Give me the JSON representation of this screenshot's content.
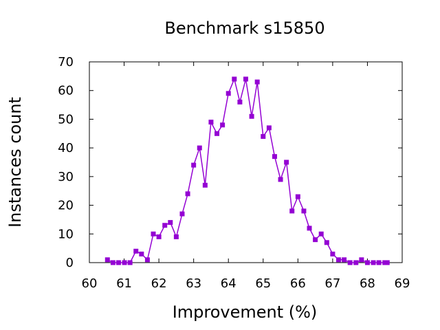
{
  "chart_data": {
    "type": "line",
    "title": "Benchmark s15850",
    "xlabel": "Improvement (%)",
    "ylabel": "Instances count",
    "xlim": [
      60,
      69
    ],
    "ylim": [
      0,
      70
    ],
    "xticks": [
      "60",
      "61",
      "62",
      "63",
      "64",
      "65",
      "66",
      "67",
      "68",
      "69"
    ],
    "yticks": [
      "0",
      "10",
      "20",
      "30",
      "40",
      "50",
      "60",
      "70"
    ],
    "grid": false,
    "legend": "none",
    "series": [
      {
        "color": "#9400d3",
        "marker": "square",
        "x": [
          60.52,
          60.68,
          60.84,
          61.01,
          61.17,
          61.34,
          61.5,
          61.67,
          61.84,
          62.0,
          62.17,
          62.33,
          62.5,
          62.67,
          62.83,
          63.0,
          63.17,
          63.33,
          63.5,
          63.67,
          63.83,
          64.0,
          64.17,
          64.33,
          64.5,
          64.67,
          64.83,
          65.0,
          65.17,
          65.33,
          65.5,
          65.67,
          65.83,
          66.0,
          66.17,
          66.33,
          66.5,
          66.67,
          66.83,
          67.0,
          67.17,
          67.33,
          67.5,
          67.67,
          67.83,
          68.0,
          68.17,
          68.33,
          68.5,
          68.57
        ],
        "y": [
          1,
          0,
          0,
          0,
          0,
          4,
          3,
          1,
          10,
          9,
          13,
          14,
          9,
          17,
          24,
          34,
          40,
          27,
          49,
          45,
          48,
          59,
          64,
          56,
          64,
          51,
          63,
          44,
          47,
          37,
          29,
          35,
          18,
          23,
          18,
          12,
          8,
          10,
          7,
          3,
          1,
          1,
          0,
          0,
          1,
          0,
          0,
          0,
          0,
          0
        ]
      }
    ]
  }
}
